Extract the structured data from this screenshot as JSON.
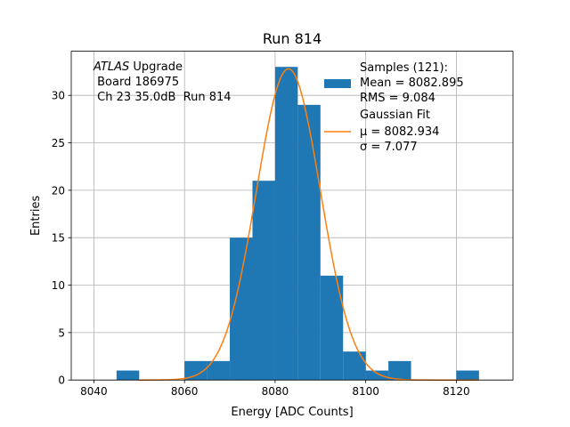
{
  "chart_data": {
    "type": "bar",
    "title": "Run 814",
    "xlabel": "Energy [ADC Counts]",
    "ylabel": "Entries",
    "xlim": [
      8035,
      8132.5
    ],
    "ylim": [
      0,
      34.65
    ],
    "grid": true,
    "xticks": [
      8040,
      8060,
      8080,
      8100,
      8120
    ],
    "yticks": [
      0,
      5,
      10,
      15,
      20,
      25,
      30
    ],
    "bin_width": 5,
    "bins": [
      {
        "left": 8045,
        "count": 1
      },
      {
        "left": 8060,
        "count": 2
      },
      {
        "left": 8065,
        "count": 2
      },
      {
        "left": 8070,
        "count": 15
      },
      {
        "left": 8075,
        "count": 21
      },
      {
        "left": 8080,
        "count": 33
      },
      {
        "left": 8085,
        "count": 29
      },
      {
        "left": 8090,
        "count": 11
      },
      {
        "left": 8095,
        "count": 3
      },
      {
        "left": 8100,
        "count": 1
      },
      {
        "left": 8105,
        "count": 2
      },
      {
        "left": 8120,
        "count": 1
      }
    ],
    "fit": {
      "type": "gaussian",
      "amplitude": 32.8,
      "mu": 8082.934,
      "sigma": 7.077
    },
    "series": [
      {
        "name": "Samples",
        "type": "histogram",
        "color": "#1f77b4"
      },
      {
        "name": "Gaussian Fit",
        "type": "line",
        "color": "#ff7f0e"
      }
    ],
    "annotation": {
      "italic": "ATLAS",
      "rest": " Upgrade",
      "line2": " Board 186975",
      "line3": " Ch 23 35.0dB  Run 814"
    },
    "legend": {
      "position": "top-right",
      "samples_lines": [
        "Samples (121):",
        "Mean = 8082.895",
        "RMS = 9.084"
      ],
      "fit_title": "Gaussian Fit",
      "fit_mu": "μ = 8082.934",
      "fit_sigma": "σ = 7.077"
    }
  }
}
